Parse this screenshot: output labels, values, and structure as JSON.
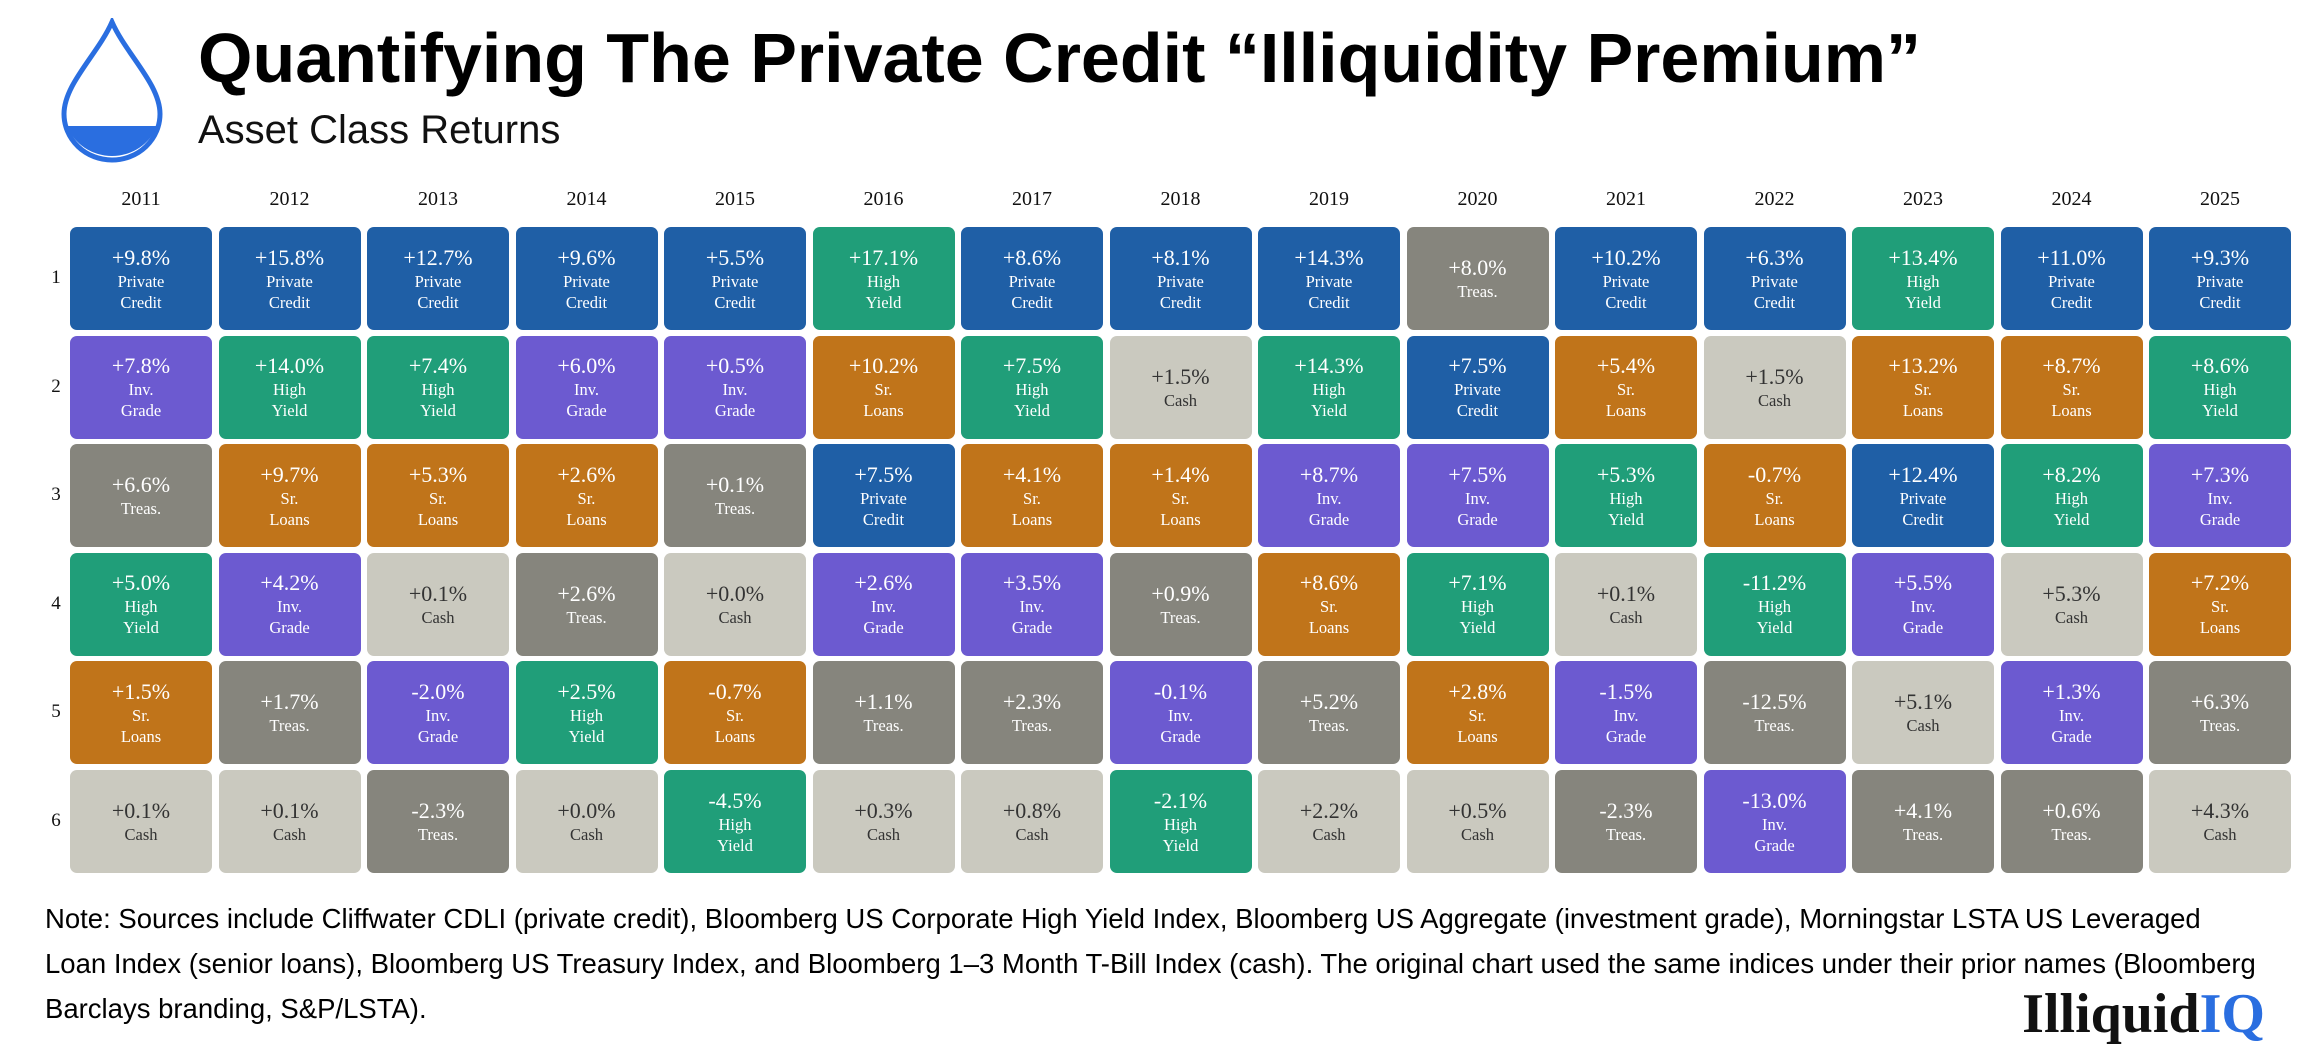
{
  "header": {
    "title": "Quantifying The Private Credit “Illiquidity Premium”",
    "subtitle": "Asset Class Returns"
  },
  "table": {
    "columns": [
      "2011",
      "2012",
      "2013",
      "2014",
      "2015",
      "2016",
      "2017",
      "2018",
      "2019",
      "2020",
      "2021",
      "2022",
      "2023",
      "2024",
      "2025"
    ],
    "row_labels": [
      "1",
      "2",
      "3",
      "4",
      "5",
      "6"
    ],
    "rows": [
      [
        {
          "value": "+9.8%",
          "asset": [
            "Private",
            "Credit"
          ],
          "color": "#1f5fa6"
        },
        {
          "value": "+15.8%",
          "asset": [
            "Private",
            "Credit"
          ],
          "color": "#1f5fa6"
        },
        {
          "value": "+12.7%",
          "asset": [
            "Private",
            "Credit"
          ],
          "color": "#1f5fa6"
        },
        {
          "value": "+9.6%",
          "asset": [
            "Private",
            "Credit"
          ],
          "color": "#1f5fa6"
        },
        {
          "value": "+5.5%",
          "asset": [
            "Private",
            "Credit"
          ],
          "color": "#1f5fa6"
        },
        {
          "value": "+17.1%",
          "asset": [
            "High",
            "Yield"
          ],
          "color": "#209e79"
        },
        {
          "value": "+8.6%",
          "asset": [
            "Private",
            "Credit"
          ],
          "color": "#1f5fa6"
        },
        {
          "value": "+8.1%",
          "asset": [
            "Private",
            "Credit"
          ],
          "color": "#1f5fa6"
        },
        {
          "value": "+14.3%",
          "asset": [
            "Private",
            "Credit"
          ],
          "color": "#1f5fa6"
        },
        {
          "value": "+8.0%",
          "asset": [
            "Treas."
          ],
          "color": "#86857d"
        },
        {
          "value": "+10.2%",
          "asset": [
            "Private",
            "Credit"
          ],
          "color": "#1f5fa6"
        },
        {
          "value": "+6.3%",
          "asset": [
            "Private",
            "Credit"
          ],
          "color": "#1f5fa6"
        },
        {
          "value": "+13.4%",
          "asset": [
            "High",
            "Yield"
          ],
          "color": "#209e79"
        },
        {
          "value": "+11.0%",
          "asset": [
            "Private",
            "Credit"
          ],
          "color": "#1f5fa6"
        },
        {
          "value": "+9.3%",
          "asset": [
            "Private",
            "Credit"
          ],
          "color": "#1f5fa6"
        }
      ],
      [
        {
          "value": "+7.8%",
          "asset": [
            "Inv.",
            "Grade"
          ],
          "color": "#6c5ad0"
        },
        {
          "value": "+14.0%",
          "asset": [
            "High",
            "Yield"
          ],
          "color": "#209e79"
        },
        {
          "value": "+7.4%",
          "asset": [
            "High",
            "Yield"
          ],
          "color": "#209e79"
        },
        {
          "value": "+6.0%",
          "asset": [
            "Inv.",
            "Grade"
          ],
          "color": "#6c5ad0"
        },
        {
          "value": "+0.5%",
          "asset": [
            "Inv.",
            "Grade"
          ],
          "color": "#6c5ad0"
        },
        {
          "value": "+10.2%",
          "asset": [
            "Sr.",
            "Loans"
          ],
          "color": "#c0741a"
        },
        {
          "value": "+7.5%",
          "asset": [
            "High",
            "Yield"
          ],
          "color": "#209e79"
        },
        {
          "value": "+1.5%",
          "asset": [
            "Cash"
          ],
          "color": "#cac9bf"
        },
        {
          "value": "+14.3%",
          "asset": [
            "High",
            "Yield"
          ],
          "color": "#209e79"
        },
        {
          "value": "+7.5%",
          "asset": [
            "Private",
            "Credit"
          ],
          "color": "#1f5fa6"
        },
        {
          "value": "+5.4%",
          "asset": [
            "Sr.",
            "Loans"
          ],
          "color": "#c0741a"
        },
        {
          "value": "+1.5%",
          "asset": [
            "Cash"
          ],
          "color": "#cac9bf"
        },
        {
          "value": "+13.2%",
          "asset": [
            "Sr.",
            "Loans"
          ],
          "color": "#c0741a"
        },
        {
          "value": "+8.7%",
          "asset": [
            "Sr.",
            "Loans"
          ],
          "color": "#c0741a"
        },
        {
          "value": "+8.6%",
          "asset": [
            "High",
            "Yield"
          ],
          "color": "#209e79"
        }
      ],
      [
        {
          "value": "+6.6%",
          "asset": [
            "Treas."
          ],
          "color": "#86857d"
        },
        {
          "value": "+9.7%",
          "asset": [
            "Sr.",
            "Loans"
          ],
          "color": "#c0741a"
        },
        {
          "value": "+5.3%",
          "asset": [
            "Sr.",
            "Loans"
          ],
          "color": "#c0741a"
        },
        {
          "value": "+2.6%",
          "asset": [
            "Sr.",
            "Loans"
          ],
          "color": "#c0741a"
        },
        {
          "value": "+0.1%",
          "asset": [
            "Treas."
          ],
          "color": "#86857d"
        },
        {
          "value": "+7.5%",
          "asset": [
            "Private",
            "Credit"
          ],
          "color": "#1f5fa6"
        },
        {
          "value": "+4.1%",
          "asset": [
            "Sr.",
            "Loans"
          ],
          "color": "#c0741a"
        },
        {
          "value": "+1.4%",
          "asset": [
            "Sr.",
            "Loans"
          ],
          "color": "#c0741a"
        },
        {
          "value": "+8.7%",
          "asset": [
            "Inv.",
            "Grade"
          ],
          "color": "#6c5ad0"
        },
        {
          "value": "+7.5%",
          "asset": [
            "Inv.",
            "Grade"
          ],
          "color": "#6c5ad0"
        },
        {
          "value": "+5.3%",
          "asset": [
            "High",
            "Yield"
          ],
          "color": "#209e79"
        },
        {
          "value": "-0.7%",
          "asset": [
            "Sr.",
            "Loans"
          ],
          "color": "#c0741a"
        },
        {
          "value": "+12.4%",
          "asset": [
            "Private",
            "Credit"
          ],
          "color": "#1f5fa6"
        },
        {
          "value": "+8.2%",
          "asset": [
            "High",
            "Yield"
          ],
          "color": "#209e79"
        },
        {
          "value": "+7.3%",
          "asset": [
            "Inv.",
            "Grade"
          ],
          "color": "#6c5ad0"
        }
      ],
      [
        {
          "value": "+5.0%",
          "asset": [
            "High",
            "Yield"
          ],
          "color": "#209e79"
        },
        {
          "value": "+4.2%",
          "asset": [
            "Inv.",
            "Grade"
          ],
          "color": "#6c5ad0"
        },
        {
          "value": "+0.1%",
          "asset": [
            "Cash"
          ],
          "color": "#cac9bf"
        },
        {
          "value": "+2.6%",
          "asset": [
            "Treas."
          ],
          "color": "#86857d"
        },
        {
          "value": "+0.0%",
          "asset": [
            "Cash"
          ],
          "color": "#cac9bf"
        },
        {
          "value": "+2.6%",
          "asset": [
            "Inv.",
            "Grade"
          ],
          "color": "#6c5ad0"
        },
        {
          "value": "+3.5%",
          "asset": [
            "Inv.",
            "Grade"
          ],
          "color": "#6c5ad0"
        },
        {
          "value": "+0.9%",
          "asset": [
            "Treas."
          ],
          "color": "#86857d"
        },
        {
          "value": "+8.6%",
          "asset": [
            "Sr.",
            "Loans"
          ],
          "color": "#c0741a"
        },
        {
          "value": "+7.1%",
          "asset": [
            "High",
            "Yield"
          ],
          "color": "#209e79"
        },
        {
          "value": "+0.1%",
          "asset": [
            "Cash"
          ],
          "color": "#cac9bf"
        },
        {
          "value": "-11.2%",
          "asset": [
            "High",
            "Yield"
          ],
          "color": "#209e79"
        },
        {
          "value": "+5.5%",
          "asset": [
            "Inv.",
            "Grade"
          ],
          "color": "#6c5ad0"
        },
        {
          "value": "+5.3%",
          "asset": [
            "Cash"
          ],
          "color": "#cac9bf"
        },
        {
          "value": "+7.2%",
          "asset": [
            "Sr.",
            "Loans"
          ],
          "color": "#c0741a"
        }
      ],
      [
        {
          "value": "+1.5%",
          "asset": [
            "Sr.",
            "Loans"
          ],
          "color": "#c0741a"
        },
        {
          "value": "+1.7%",
          "asset": [
            "Treas."
          ],
          "color": "#86857d"
        },
        {
          "value": "-2.0%",
          "asset": [
            "Inv.",
            "Grade"
          ],
          "color": "#6c5ad0"
        },
        {
          "value": "+2.5%",
          "asset": [
            "High",
            "Yield"
          ],
          "color": "#209e79"
        },
        {
          "value": "-0.7%",
          "asset": [
            "Sr.",
            "Loans"
          ],
          "color": "#c0741a"
        },
        {
          "value": "+1.1%",
          "asset": [
            "Treas."
          ],
          "color": "#86857d"
        },
        {
          "value": "+2.3%",
          "asset": [
            "Treas."
          ],
          "color": "#86857d"
        },
        {
          "value": "-0.1%",
          "asset": [
            "Inv.",
            "Grade"
          ],
          "color": "#6c5ad0"
        },
        {
          "value": "+5.2%",
          "asset": [
            "Treas."
          ],
          "color": "#86857d"
        },
        {
          "value": "+2.8%",
          "asset": [
            "Sr.",
            "Loans"
          ],
          "color": "#c0741a"
        },
        {
          "value": "-1.5%",
          "asset": [
            "Inv.",
            "Grade"
          ],
          "color": "#6c5ad0"
        },
        {
          "value": "-12.5%",
          "asset": [
            "Treas."
          ],
          "color": "#86857d"
        },
        {
          "value": "+5.1%",
          "asset": [
            "Cash"
          ],
          "color": "#cac9bf"
        },
        {
          "value": "+1.3%",
          "asset": [
            "Inv.",
            "Grade"
          ],
          "color": "#6c5ad0"
        },
        {
          "value": "+6.3%",
          "asset": [
            "Treas."
          ],
          "color": "#86857d"
        }
      ],
      [
        {
          "value": "+0.1%",
          "asset": [
            "Cash"
          ],
          "color": "#cac9bf"
        },
        {
          "value": "+0.1%",
          "asset": [
            "Cash"
          ],
          "color": "#cac9bf"
        },
        {
          "value": "-2.3%",
          "asset": [
            "Treas."
          ],
          "color": "#86857d"
        },
        {
          "value": "+0.0%",
          "asset": [
            "Cash"
          ],
          "color": "#cac9bf"
        },
        {
          "value": "-4.5%",
          "asset": [
            "High",
            "Yield"
          ],
          "color": "#209e79"
        },
        {
          "value": "+0.3%",
          "asset": [
            "Cash"
          ],
          "color": "#cac9bf"
        },
        {
          "value": "+0.8%",
          "asset": [
            "Cash"
          ],
          "color": "#cac9bf"
        },
        {
          "value": "-2.1%",
          "asset": [
            "High",
            "Yield"
          ],
          "color": "#209e79"
        },
        {
          "value": "+2.2%",
          "asset": [
            "Cash"
          ],
          "color": "#cac9bf"
        },
        {
          "value": "+0.5%",
          "asset": [
            "Cash"
          ],
          "color": "#cac9bf"
        },
        {
          "value": "-2.3%",
          "asset": [
            "Treas."
          ],
          "color": "#86857d"
        },
        {
          "value": "-13.0%",
          "asset": [
            "Inv.",
            "Grade"
          ],
          "color": "#6c5ad0"
        },
        {
          "value": "+4.1%",
          "asset": [
            "Treas."
          ],
          "color": "#86857d"
        },
        {
          "value": "+0.6%",
          "asset": [
            "Treas."
          ],
          "color": "#86857d"
        },
        {
          "value": "+4.3%",
          "asset": [
            "Cash"
          ],
          "color": "#cac9bf"
        }
      ]
    ]
  },
  "note": "Note: Sources include Cliffwater CDLI (private credit), Bloomberg US Corporate High Yield Index, Bloomberg US Aggregate (investment grade), Morningstar LSTA US Leveraged Loan Index (senior loans), Bloomberg US Treasury Index, and Bloomberg 1–3 Month T-Bill Index (cash). The original chart used the same indices under their prior names (Bloomberg Barclays branding, S&P/LSTA).",
  "logo": {
    "part1": "Illiquid",
    "part2": "IQ"
  }
}
